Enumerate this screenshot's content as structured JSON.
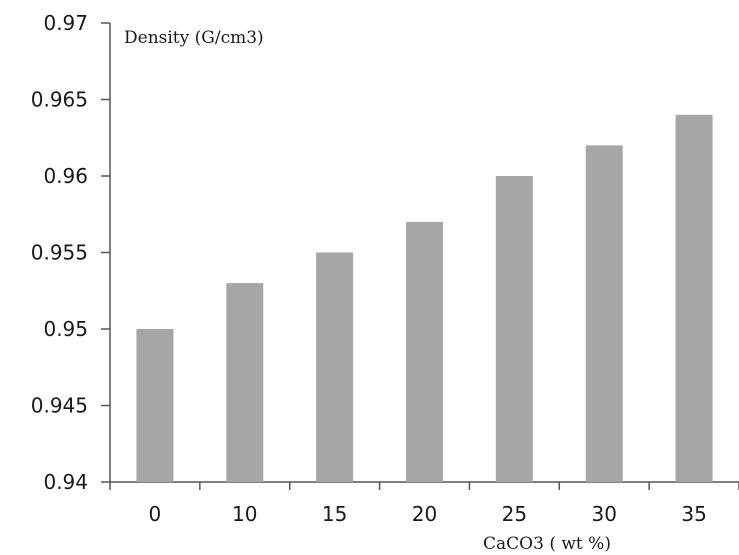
{
  "chart_data": {
    "type": "bar",
    "categories": [
      "0",
      "10",
      "15",
      "20",
      "25",
      "30",
      "35"
    ],
    "values": [
      0.95,
      0.953,
      0.955,
      0.957,
      0.96,
      0.962,
      0.964
    ],
    "ylabel": "Density (G/cm3)",
    "xlabel": "CaCO3 ( wt %)",
    "ylim": [
      0.94,
      0.97
    ],
    "yticks": [
      "0.94",
      "0.945",
      "0.95",
      "0.955",
      "0.96",
      "0.965",
      "0.97"
    ],
    "grid": false,
    "legend": "none",
    "bar_color": "#a6a6a6",
    "axis_color": "#555555"
  }
}
